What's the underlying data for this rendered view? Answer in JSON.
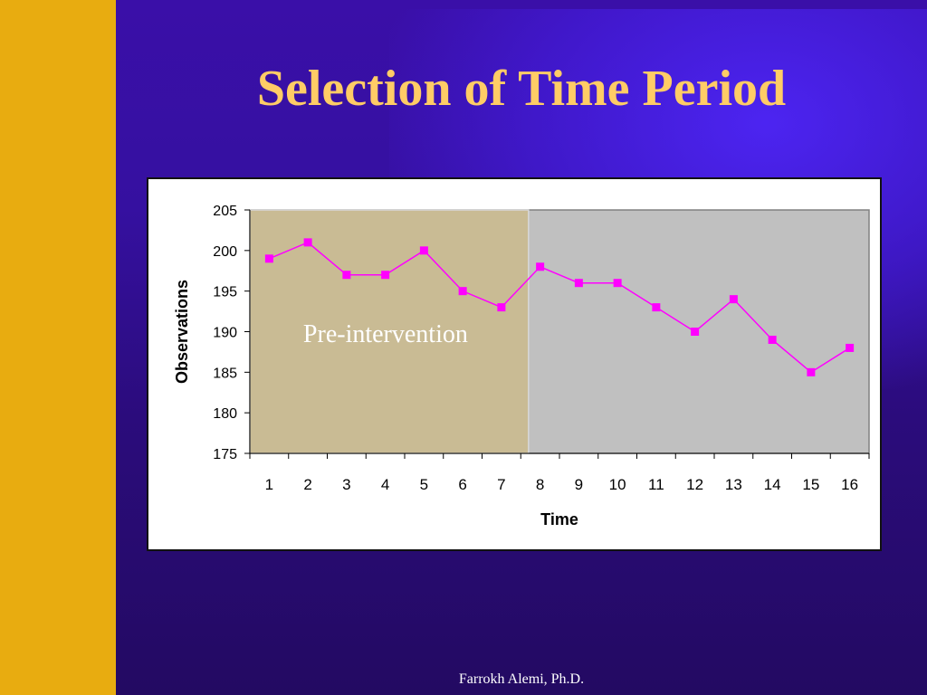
{
  "slide": {
    "title": "Selection of Time Period",
    "footer": "Farrokh Alemi, Ph.D."
  },
  "colors": {
    "background": "#2a0f6e",
    "left_bar": "#e8ac10",
    "title": "#ffcc66",
    "plot_area": "#c0c0c0",
    "highlight": "#c9bb94",
    "series": "#ff00ff"
  },
  "chart_data": {
    "type": "line",
    "title": "",
    "xlabel": "Time",
    "ylabel": "Observations",
    "x": [
      1,
      2,
      3,
      4,
      5,
      6,
      7,
      8,
      9,
      10,
      11,
      12,
      13,
      14,
      15,
      16
    ],
    "categories": [
      "1",
      "2",
      "3",
      "4",
      "5",
      "6",
      "7",
      "8",
      "9",
      "10",
      "11",
      "12",
      "13",
      "14",
      "15",
      "16"
    ],
    "series": [
      {
        "values": [
          199,
          201,
          197,
          197,
          200,
          195,
          193,
          198,
          196,
          196,
          193,
          190,
          194,
          189,
          185,
          188
        ]
      }
    ],
    "ylim": [
      175,
      205
    ],
    "yticks": [
      "175",
      "180",
      "185",
      "190",
      "195",
      "200",
      "205"
    ],
    "grid": false,
    "legend": "none",
    "highlight_region": {
      "from_category": 1,
      "to_category": 7,
      "label": "Pre-intervention"
    }
  }
}
